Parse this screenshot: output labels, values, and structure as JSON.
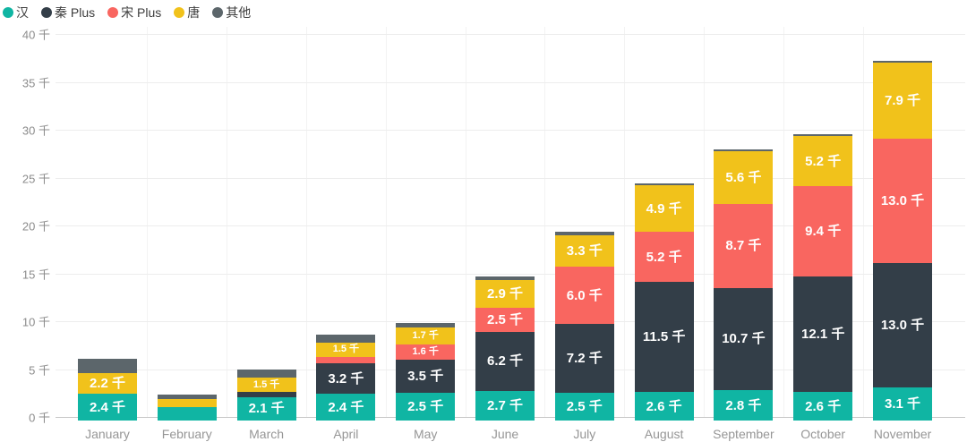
{
  "legend": {
    "items": [
      {
        "label": "汉",
        "color": "#10b5a3"
      },
      {
        "label": "秦 Plus",
        "color": "#333e48"
      },
      {
        "label": "宋 Plus",
        "color": "#f96660"
      },
      {
        "label": "唐",
        "color": "#f1c21b"
      },
      {
        "label": "其他",
        "color": "#5c666b"
      }
    ]
  },
  "chart_data": {
    "type": "bar",
    "stacked": true,
    "title": "",
    "xlabel": "",
    "ylabel": "",
    "unit": "千",
    "categories": [
      "January",
      "February",
      "March",
      "April",
      "May",
      "June",
      "July",
      "August",
      "September",
      "October",
      "November"
    ],
    "series": [
      {
        "name": "汉",
        "color": "#10b5a3",
        "show_labels": true,
        "values": [
          2.4,
          1.0,
          2.1,
          2.4,
          2.5,
          2.7,
          2.5,
          2.6,
          2.8,
          2.6,
          3.1
        ]
      },
      {
        "name": "秦 Plus",
        "color": "#333e48",
        "show_labels": true,
        "values": [
          0,
          0,
          0.5,
          3.2,
          3.5,
          6.2,
          7.2,
          11.5,
          10.7,
          12.1,
          13.0
        ]
      },
      {
        "name": "宋 Plus",
        "color": "#f96660",
        "show_labels": true,
        "values": [
          0,
          0,
          0,
          0.7,
          1.6,
          2.5,
          6.0,
          5.2,
          8.7,
          9.4,
          13.0
        ]
      },
      {
        "name": "唐",
        "color": "#f1c21b",
        "show_labels": true,
        "values": [
          2.2,
          0.9,
          1.5,
          1.5,
          1.7,
          2.9,
          3.3,
          4.9,
          5.6,
          5.2,
          7.9
        ]
      },
      {
        "name": "其他",
        "color": "#5c666b",
        "show_labels": false,
        "values": [
          1.5,
          0.4,
          0.9,
          0.8,
          0.5,
          0.4,
          0.3,
          0.2,
          0.1,
          0.2,
          0.2
        ]
      }
    ],
    "ylim": [
      0,
      40
    ],
    "ytick_step": 5,
    "ytick_labels": [
      "0 千",
      "5 千",
      "10 千",
      "15 千",
      "20 千",
      "25 千",
      "30 千",
      "35 千",
      "40 千"
    ],
    "label_threshold": 1.5,
    "label_suffix": " 千",
    "grid": true,
    "legend_position": "top-left"
  }
}
